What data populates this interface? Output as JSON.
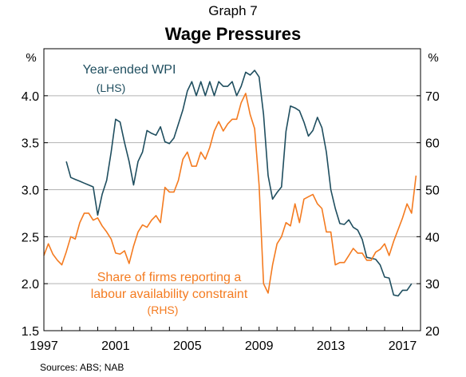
{
  "graph_label": "Graph 7",
  "sources": "Sources:   ABS; NAB",
  "chart_data": {
    "type": "line",
    "title": "Wage Pressures",
    "left_axis": {
      "unit": "%",
      "range": [
        1.5,
        4.5
      ],
      "ticks": [
        "1.5",
        "2.0",
        "2.5",
        "3.0",
        "3.5",
        "4.0"
      ]
    },
    "right_axis": {
      "unit": "%",
      "range": [
        20,
        80
      ],
      "ticks": [
        "20",
        "30",
        "40",
        "50",
        "60",
        "70"
      ]
    },
    "x_axis": {
      "range": [
        1997,
        2018
      ],
      "ticks": [
        "1997",
        "2001",
        "2005",
        "2009",
        "2013",
        "2017"
      ]
    },
    "grid": true,
    "colors": {
      "wpi": "#1f4e5f",
      "share": "#f47b20",
      "grid": "#b3b3b3"
    },
    "series": [
      {
        "id": "wpi",
        "axis": "left",
        "name_lines": [
          "Year-ended WPI",
          "(LHS)"
        ],
        "points": [
          [
            1998.25,
            3.3
          ],
          [
            1998.5,
            3.13
          ],
          [
            1998.75,
            3.11
          ],
          [
            1999.0,
            3.09
          ],
          [
            1999.25,
            3.07
          ],
          [
            1999.5,
            3.05
          ],
          [
            1999.75,
            3.03
          ],
          [
            2000.0,
            2.73
          ],
          [
            2000.25,
            2.95
          ],
          [
            2000.5,
            3.1
          ],
          [
            2000.75,
            3.4
          ],
          [
            2001.0,
            3.75
          ],
          [
            2001.25,
            3.72
          ],
          [
            2001.5,
            3.5
          ],
          [
            2001.75,
            3.3
          ],
          [
            2002.0,
            3.05
          ],
          [
            2002.25,
            3.3
          ],
          [
            2002.5,
            3.4
          ],
          [
            2002.75,
            3.63
          ],
          [
            2003.0,
            3.6
          ],
          [
            2003.25,
            3.58
          ],
          [
            2003.5,
            3.67
          ],
          [
            2003.75,
            3.51
          ],
          [
            2004.0,
            3.49
          ],
          [
            2004.25,
            3.55
          ],
          [
            2004.5,
            3.7
          ],
          [
            2004.75,
            3.85
          ],
          [
            2005.0,
            4.05
          ],
          [
            2005.25,
            4.15
          ],
          [
            2005.5,
            4.0
          ],
          [
            2005.75,
            4.15
          ],
          [
            2006.0,
            4.0
          ],
          [
            2006.25,
            4.15
          ],
          [
            2006.5,
            4.0
          ],
          [
            2006.75,
            4.15
          ],
          [
            2007.0,
            4.1
          ],
          [
            2007.25,
            4.1
          ],
          [
            2007.5,
            4.15
          ],
          [
            2007.75,
            4.0
          ],
          [
            2008.0,
            4.1
          ],
          [
            2008.25,
            4.25
          ],
          [
            2008.5,
            4.22
          ],
          [
            2008.75,
            4.27
          ],
          [
            2009.0,
            4.2
          ],
          [
            2009.25,
            3.8
          ],
          [
            2009.5,
            3.15
          ],
          [
            2009.75,
            2.9
          ],
          [
            2010.0,
            2.97
          ],
          [
            2010.25,
            3.03
          ],
          [
            2010.5,
            3.62
          ],
          [
            2010.75,
            3.89
          ],
          [
            2011.0,
            3.87
          ],
          [
            2011.25,
            3.84
          ],
          [
            2011.5,
            3.72
          ],
          [
            2011.75,
            3.57
          ],
          [
            2012.0,
            3.63
          ],
          [
            2012.25,
            3.77
          ],
          [
            2012.5,
            3.66
          ],
          [
            2012.75,
            3.4
          ],
          [
            2013.0,
            3.0
          ],
          [
            2013.25,
            2.8
          ],
          [
            2013.5,
            2.64
          ],
          [
            2013.75,
            2.63
          ],
          [
            2014.0,
            2.68
          ],
          [
            2014.25,
            2.6
          ],
          [
            2014.5,
            2.57
          ],
          [
            2014.75,
            2.47
          ],
          [
            2015.0,
            2.28
          ],
          [
            2015.25,
            2.27
          ],
          [
            2015.5,
            2.26
          ],
          [
            2015.75,
            2.2
          ],
          [
            2016.0,
            2.07
          ],
          [
            2016.25,
            2.06
          ],
          [
            2016.5,
            1.88
          ],
          [
            2016.75,
            1.87
          ],
          [
            2017.0,
            1.93
          ],
          [
            2017.25,
            1.93
          ],
          [
            2017.5,
            2.0
          ]
        ]
      },
      {
        "id": "share",
        "axis": "right",
        "name_lines": [
          "Share of firms reporting a",
          "labour availability constraint",
          "(RHS)"
        ],
        "points": [
          [
            1997.0,
            36.0
          ],
          [
            1997.25,
            38.5
          ],
          [
            1997.5,
            36.3
          ],
          [
            1997.75,
            35.0
          ],
          [
            1998.0,
            34.0
          ],
          [
            1998.25,
            36.8
          ],
          [
            1998.5,
            40.0
          ],
          [
            1998.75,
            39.5
          ],
          [
            1999.0,
            43.0
          ],
          [
            1999.25,
            45.0
          ],
          [
            1999.5,
            45.0
          ],
          [
            1999.75,
            43.5
          ],
          [
            2000.0,
            44.0
          ],
          [
            2000.25,
            42.3
          ],
          [
            2000.5,
            41.0
          ],
          [
            2000.75,
            39.5
          ],
          [
            2001.0,
            36.5
          ],
          [
            2001.25,
            36.3
          ],
          [
            2001.5,
            37.0
          ],
          [
            2001.75,
            34.3
          ],
          [
            2002.0,
            38.0
          ],
          [
            2002.25,
            41.0
          ],
          [
            2002.5,
            42.5
          ],
          [
            2002.75,
            42.0
          ],
          [
            2003.0,
            43.5
          ],
          [
            2003.25,
            44.5
          ],
          [
            2003.5,
            43.0
          ],
          [
            2003.75,
            50.5
          ],
          [
            2004.0,
            49.5
          ],
          [
            2004.25,
            49.5
          ],
          [
            2004.5,
            52.0
          ],
          [
            2004.75,
            56.5
          ],
          [
            2005.0,
            58.0
          ],
          [
            2005.25,
            55.0
          ],
          [
            2005.5,
            55.0
          ],
          [
            2005.75,
            58.0
          ],
          [
            2006.0,
            56.5
          ],
          [
            2006.25,
            59.0
          ],
          [
            2006.5,
            62.5
          ],
          [
            2006.75,
            64.5
          ],
          [
            2007.0,
            62.5
          ],
          [
            2007.25,
            64.0
          ],
          [
            2007.5,
            65.0
          ],
          [
            2007.75,
            65.0
          ],
          [
            2008.0,
            68.5
          ],
          [
            2008.25,
            70.5
          ],
          [
            2008.5,
            66.0
          ],
          [
            2008.75,
            63.0
          ],
          [
            2009.0,
            51.0
          ],
          [
            2009.25,
            30.0
          ],
          [
            2009.5,
            28.0
          ],
          [
            2009.75,
            34.0
          ],
          [
            2010.0,
            38.5
          ],
          [
            2010.25,
            40.0
          ],
          [
            2010.5,
            43.0
          ],
          [
            2010.75,
            42.3
          ],
          [
            2011.0,
            47.0
          ],
          [
            2011.25,
            43.0
          ],
          [
            2011.5,
            48.0
          ],
          [
            2011.75,
            48.5
          ],
          [
            2012.0,
            49.0
          ],
          [
            2012.25,
            47.0
          ],
          [
            2012.5,
            46.0
          ],
          [
            2012.75,
            41.0
          ],
          [
            2013.0,
            41.0
          ],
          [
            2013.25,
            34.0
          ],
          [
            2013.5,
            34.5
          ],
          [
            2013.75,
            34.5
          ],
          [
            2014.0,
            36.0
          ],
          [
            2014.25,
            37.5
          ],
          [
            2014.5,
            36.5
          ],
          [
            2014.75,
            36.5
          ],
          [
            2015.0,
            35.0
          ],
          [
            2015.25,
            35.0
          ],
          [
            2015.5,
            36.7
          ],
          [
            2015.75,
            37.3
          ],
          [
            2016.0,
            38.5
          ],
          [
            2016.25,
            36.0
          ],
          [
            2016.5,
            39.0
          ],
          [
            2016.75,
            41.5
          ],
          [
            2017.0,
            44.0
          ],
          [
            2017.25,
            47.0
          ],
          [
            2017.5,
            45.0
          ],
          [
            2017.75,
            53.0
          ]
        ]
      }
    ]
  }
}
